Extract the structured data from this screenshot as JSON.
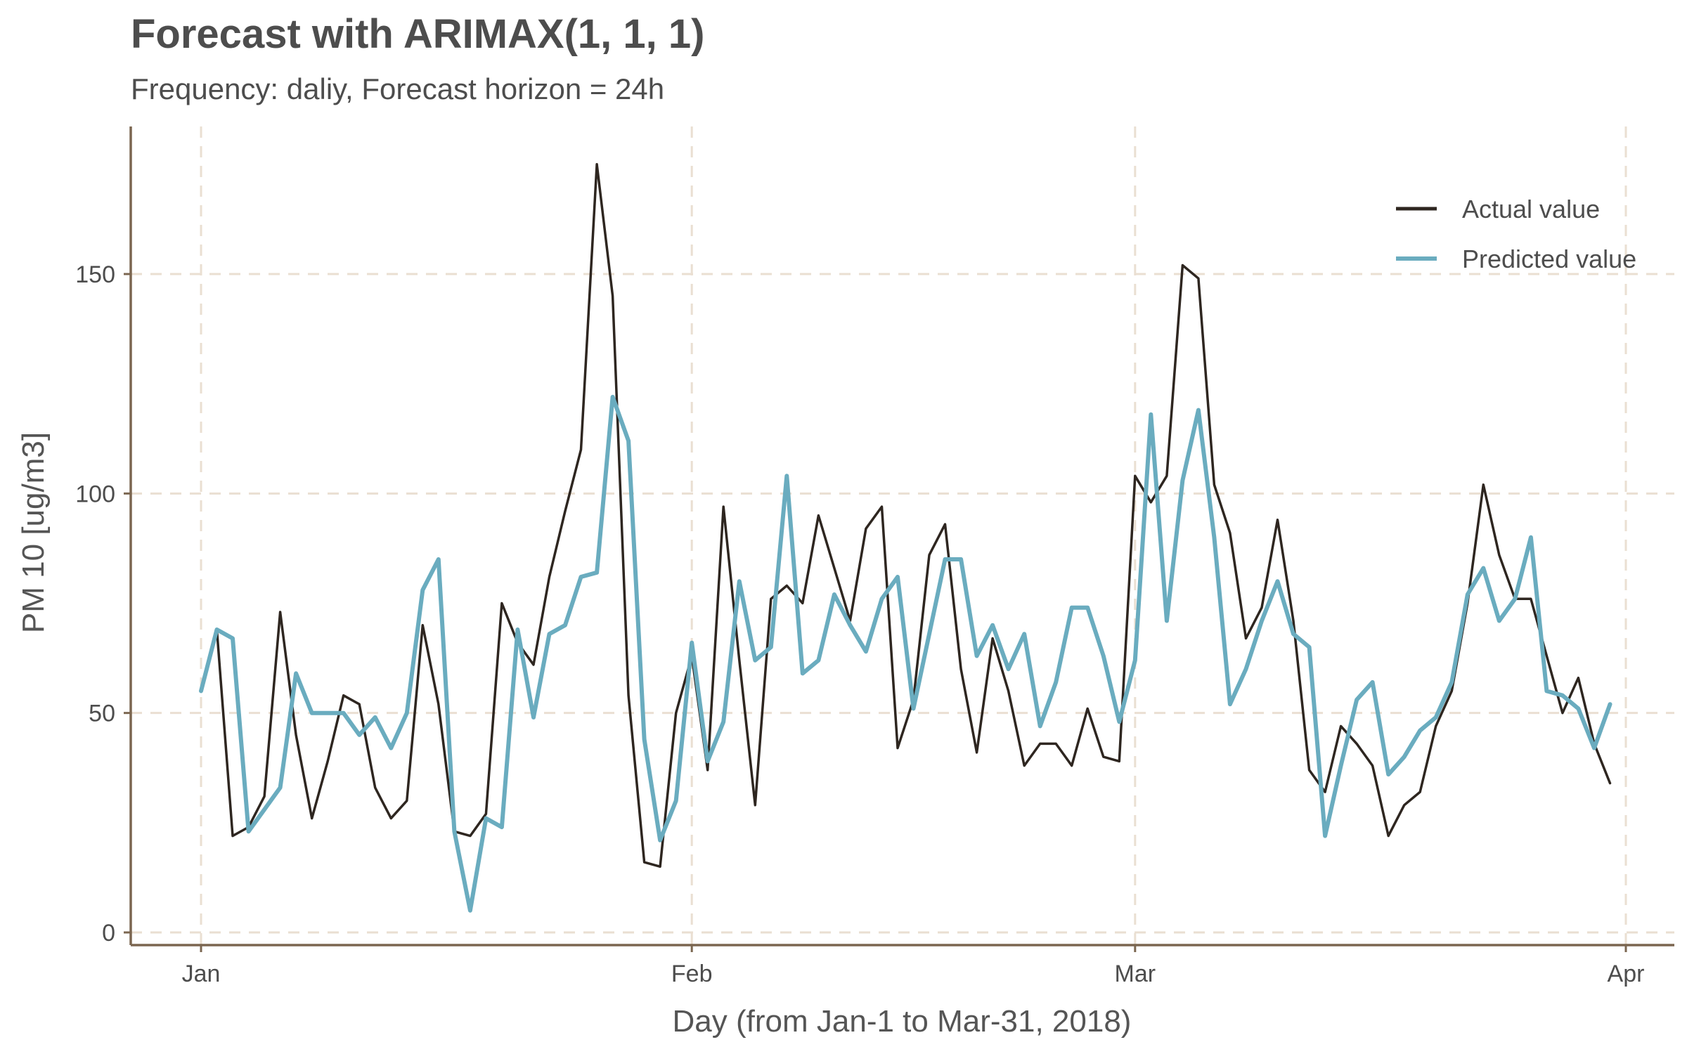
{
  "chart_data": {
    "type": "line",
    "title": "Forecast with ARIMAX(1, 1, 1)",
    "subtitle": "Frequency: daliy, Forecast horizon = 24h",
    "xlabel": "Day (from Jan-1 to Mar-31, 2018)",
    "ylabel": "PM 10 [ug/m3]",
    "x_start": "2018-01-01",
    "x_step": "1 day",
    "xlim": [
      "2018-01-01",
      "2018-04-01"
    ],
    "ylim": [
      0,
      180
    ],
    "x_ticks": [
      {
        "label": "Jan",
        "date": "2018-01-01"
      },
      {
        "label": "Feb",
        "date": "2018-02-01"
      },
      {
        "label": "Mar",
        "date": "2018-03-01"
      },
      {
        "label": "Apr",
        "date": "2018-04-01"
      }
    ],
    "y_ticks": [
      0,
      50,
      100,
      150
    ],
    "grid": true,
    "legend_position": "top-right",
    "series": [
      {
        "name": "Actual value",
        "color": "#2e2620",
        "values": [
          55,
          69,
          22,
          24,
          31,
          73,
          45,
          26,
          39,
          54,
          52,
          33,
          26,
          30,
          70,
          52,
          23,
          22,
          27,
          75,
          66,
          61,
          81,
          96,
          110,
          175,
          145,
          54,
          16,
          15,
          50,
          63,
          37,
          97,
          62,
          29,
          76,
          79,
          75,
          95,
          83,
          71,
          92,
          97,
          42,
          53,
          86,
          93,
          60,
          41,
          67,
          55,
          38,
          43,
          43,
          38,
          51,
          40,
          39,
          104,
          98,
          104,
          152,
          149,
          102,
          91,
          67,
          74,
          94,
          71,
          37,
          32,
          47,
          43,
          38,
          22,
          29,
          32,
          47,
          55,
          75,
          102,
          86,
          76,
          76,
          63,
          50,
          58,
          43,
          34
        ]
      },
      {
        "name": "Predicted value",
        "color": "#6aacbf",
        "values": [
          55,
          69,
          67,
          23,
          28,
          33,
          59,
          50,
          50,
          50,
          45,
          49,
          42,
          50,
          78,
          85,
          23,
          5,
          26,
          24,
          69,
          49,
          68,
          70,
          81,
          82,
          122,
          112,
          44,
          21,
          30,
          66,
          39,
          48,
          80,
          62,
          65,
          104,
          59,
          62,
          77,
          70,
          64,
          76,
          81,
          51,
          68,
          85,
          85,
          63,
          70,
          60,
          68,
          47,
          57,
          74,
          74,
          63,
          48,
          62,
          118,
          71,
          103,
          119,
          90,
          52,
          60,
          71,
          80,
          68,
          65,
          22,
          38,
          53,
          57,
          36,
          40,
          46,
          49,
          57,
          77,
          83,
          71,
          76,
          90,
          55,
          54,
          51,
          42,
          52
        ]
      }
    ]
  }
}
